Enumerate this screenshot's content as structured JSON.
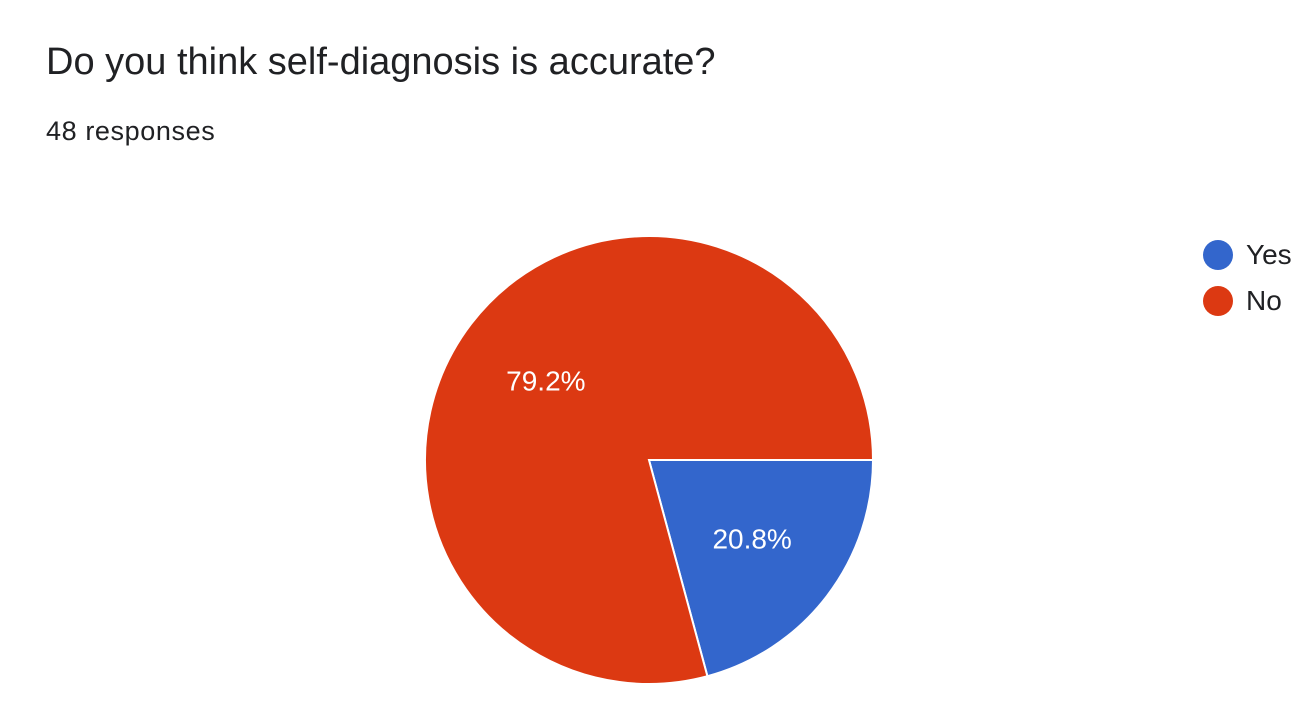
{
  "question": {
    "title": "Do you think self-diagnosis is accurate?",
    "responses": "48 responses"
  },
  "chart_data": {
    "type": "pie",
    "title": "Do you think self-diagnosis is accurate?",
    "total_responses": 48,
    "slices": [
      {
        "label": "Yes",
        "percent": 20.8,
        "display": "20.8%",
        "color": "#3366cc"
      },
      {
        "label": "No",
        "percent": 79.2,
        "display": "79.2%",
        "color": "#dc3912"
      }
    ],
    "legend_position": "right"
  }
}
